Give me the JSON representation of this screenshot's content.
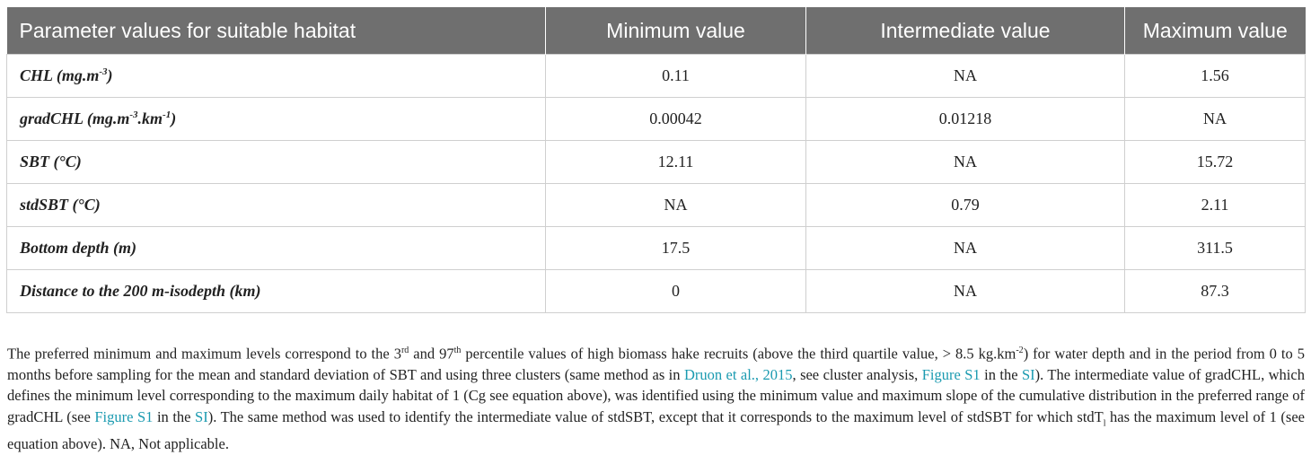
{
  "table": {
    "headers": [
      "Parameter values for suitable habitat",
      "Minimum value",
      "Intermediate value",
      "Maximum value"
    ],
    "rows": [
      {
        "param": {
          "pre": "CHL (mg.m",
          "sup1": "-3",
          "mid": ")",
          "sup2": "",
          "post": ""
        },
        "min": "0.11",
        "inter": "NA",
        "max": "1.56"
      },
      {
        "param": {
          "pre": "gradCHL (mg.m",
          "sup1": "-3",
          "mid": ".km",
          "sup2": "-1",
          "post": ")"
        },
        "min": "0.00042",
        "inter": "0.01218",
        "max": "NA"
      },
      {
        "param": {
          "pre": "SBT (°C)",
          "sup1": "",
          "mid": "",
          "sup2": "",
          "post": ""
        },
        "min": "12.11",
        "inter": "NA",
        "max": "15.72"
      },
      {
        "param": {
          "pre": "stdSBT (°C)",
          "sup1": "",
          "mid": "",
          "sup2": "",
          "post": ""
        },
        "min": "NA",
        "inter": "0.79",
        "max": "2.11"
      },
      {
        "param": {
          "pre": "Bottom depth (m)",
          "sup1": "",
          "mid": "",
          "sup2": "",
          "post": ""
        },
        "min": "17.5",
        "inter": "NA",
        "max": "311.5"
      },
      {
        "param": {
          "pre": "Distance to the 200 m-isodepth (km)",
          "sup1": "",
          "mid": "",
          "sup2": "",
          "post": ""
        },
        "min": "0",
        "inter": "NA",
        "max": "87.3"
      }
    ]
  },
  "footnote": {
    "t1": "The preferred minimum and maximum levels correspond to the 3",
    "s1": "rd",
    "t2": " and 97",
    "s2": "th",
    "t3": " percentile values of high biomass hake recruits (above the third quartile value, > 8.5 kg.km",
    "s3": "-2",
    "t4": ") for water depth and in the period from 0 to 5 months before sampling for the mean and standard deviation of SBT and using three clusters (same method as in ",
    "link1": "Druon et al., 2015",
    "t5": ", see cluster analysis, ",
    "link2": "Figure S1",
    "t6": " in the ",
    "link3": "SI",
    "t7": "). The intermediate value of gradCHL, which defines the minimum level corresponding to the maximum daily habitat of 1 (Cg see equation above), was identified using the minimum value and maximum slope of the cumulative distribution in the preferred range of gradCHL (see ",
    "link4": "Figure S1",
    "t8": " in the ",
    "link5": "SI",
    "t9": "). The same method was used to identify the intermediate value of stdSBT, except that it corresponds to the maximum level of stdSBT for which stdT",
    "sub1": "l",
    "t10": " has the maximum level of 1 (see equation above). NA, Not applicable."
  }
}
